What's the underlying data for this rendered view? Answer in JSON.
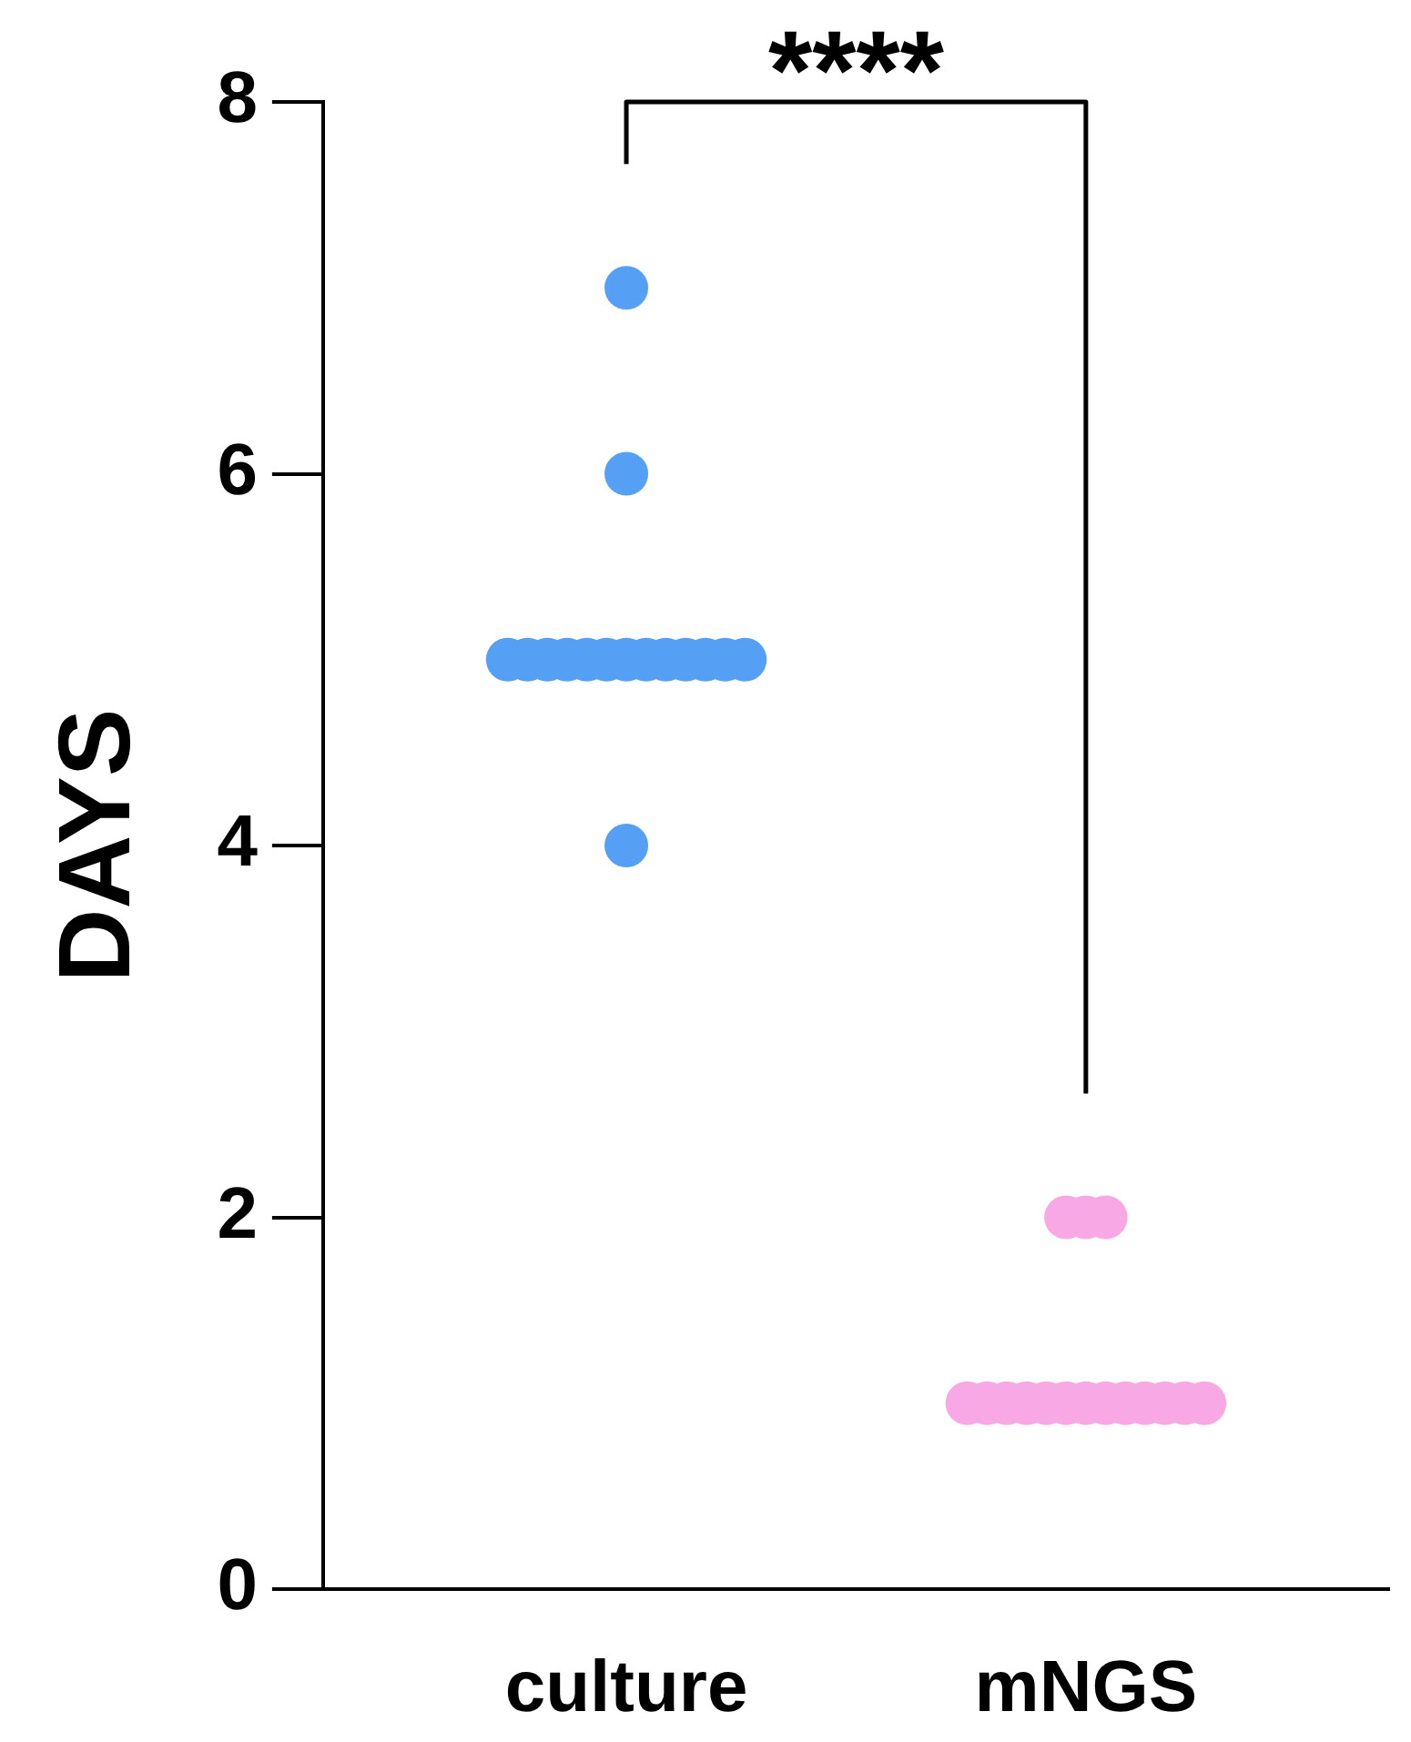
{
  "chart_data": {
    "type": "scatter",
    "ylabel": "DAYS",
    "categories": [
      "culture",
      "mNGS"
    ],
    "series": [
      {
        "x": [
          "culture",
          "culture",
          "culture",
          "culture",
          "culture",
          "culture",
          "culture",
          "culture",
          "culture",
          "culture",
          "culture",
          "culture",
          "culture",
          "culture",
          "culture",
          "culture"
        ],
        "values": [
          7,
          6,
          5,
          5,
          5,
          5,
          5,
          5,
          5,
          5,
          5,
          5,
          5,
          5,
          5,
          4
        ],
        "color": "#55a0f5"
      },
      {
        "x": [
          "mNGS",
          "mNGS",
          "mNGS",
          "mNGS",
          "mNGS",
          "mNGS",
          "mNGS",
          "mNGS",
          "mNGS",
          "mNGS",
          "mNGS",
          "mNGS",
          "mNGS",
          "mNGS",
          "mNGS",
          "mNGS"
        ],
        "values": [
          2,
          2,
          2,
          1,
          1,
          1,
          1,
          1,
          1,
          1,
          1,
          1,
          1,
          1,
          1,
          1
        ],
        "color": "#f9a8e6"
      }
    ],
    "ylim": [
      0,
      8
    ],
    "yticks": [
      0,
      2,
      4,
      6,
      8
    ],
    "grid": false,
    "legend": false,
    "marker": "circle",
    "annotations": [
      "****"
    ]
  }
}
